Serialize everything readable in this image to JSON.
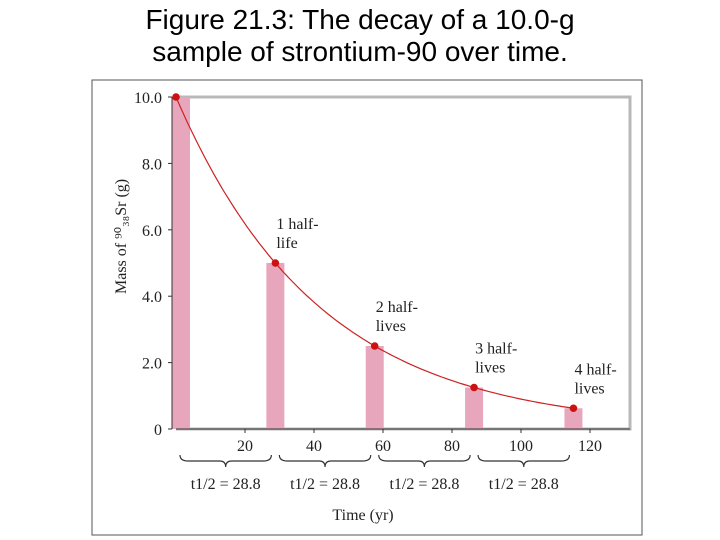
{
  "figure": {
    "title_line1": "Figure 21.3:  The decay of a 10.0-g",
    "title_line2": "sample of strontium-90 over time."
  },
  "chart_data": {
    "type": "bar",
    "x": [
      0,
      28.8,
      57.6,
      86.4,
      115.2
    ],
    "values": [
      10.0,
      5.0,
      2.5,
      1.25,
      0.625
    ],
    "decay_curve": true,
    "xlabel": "Time (yr)",
    "ylabel": "Mass of ⁹⁰₃₈Sr (g)",
    "ylim": [
      0,
      10.0
    ],
    "xlim": [
      0,
      120
    ],
    "y_ticks": [
      "0",
      "2.0",
      "4.0",
      "6.0",
      "8.0",
      "10.0"
    ],
    "x_ticks": [
      "20",
      "40",
      "60",
      "80",
      "100",
      "120"
    ],
    "half_life_label": "t1/2 = 28.8",
    "annotations": [
      {
        "line1": "1 half-",
        "line2": "life",
        "bar": 1
      },
      {
        "line1": "2 half-",
        "line2": "lives",
        "bar": 2
      },
      {
        "line1": "3 half-",
        "line2": "lives",
        "bar": 3
      },
      {
        "line1": "4 half-",
        "line2": "lives",
        "bar": 4
      }
    ],
    "colors": {
      "bar": "#e8a6bc",
      "curve": "#cc2222",
      "point": "#cc1111",
      "frame": "#b8b8b8"
    }
  }
}
